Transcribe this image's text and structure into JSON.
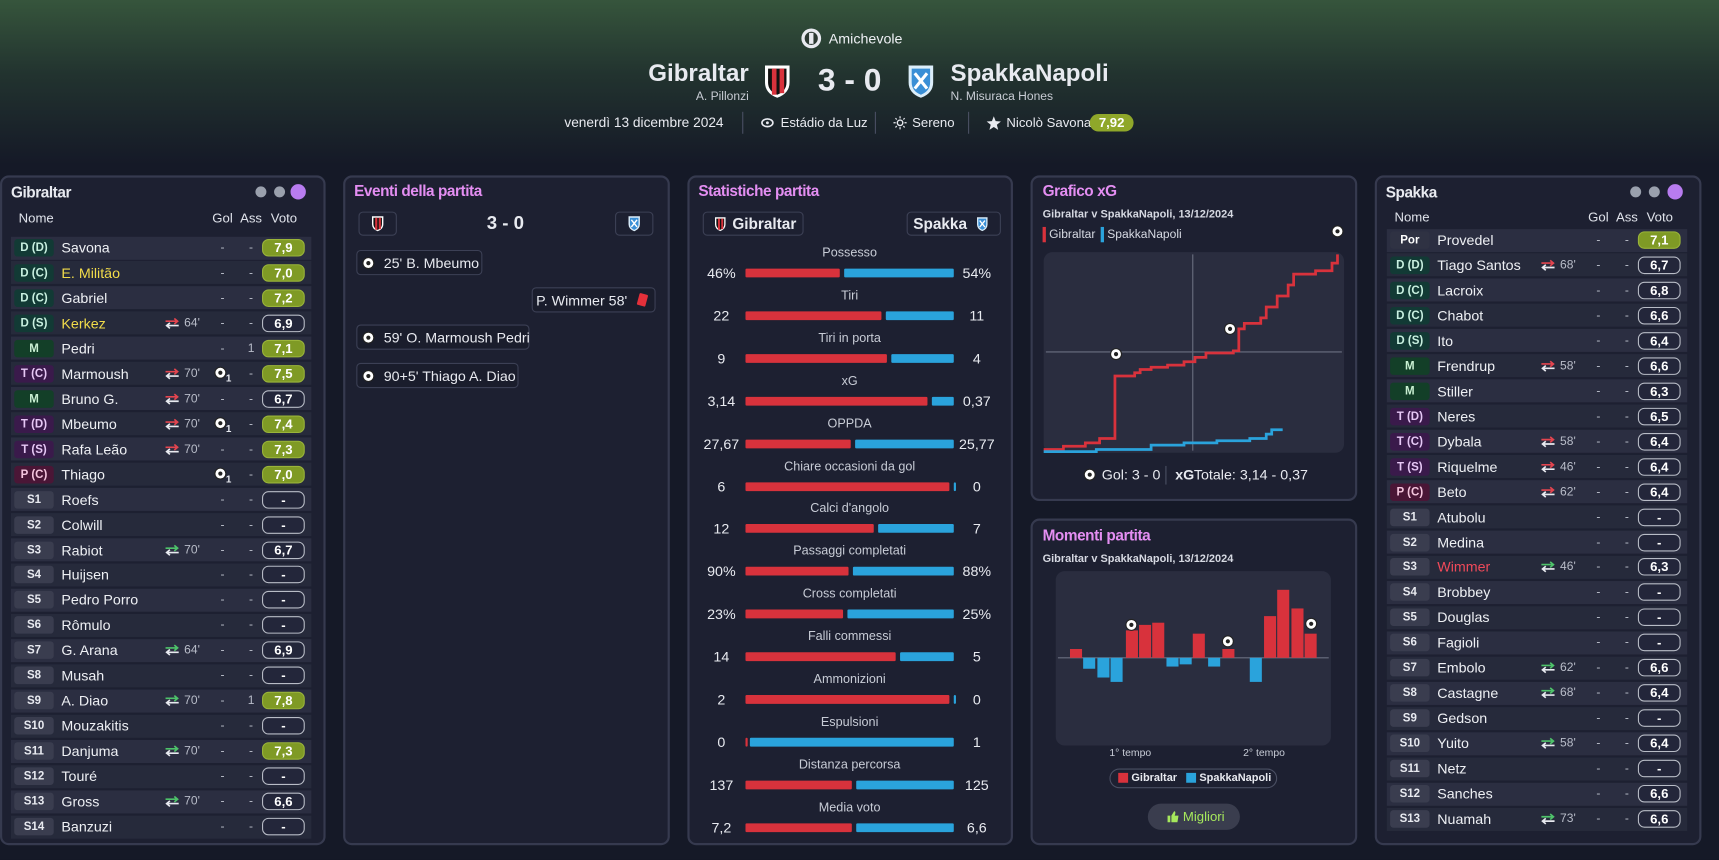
{
  "header": {
    "competition": "Amichevole",
    "home_team": "Gibraltar",
    "home_manager": "A. Pillonzi",
    "score": "3 - 0",
    "away_team": "SpakkaNapoli",
    "away_manager": "N. Misuraca Hones",
    "date": "venerdì 13 dicembre 2024",
    "stadium": "Estádio da Luz",
    "weather": "Sereno",
    "player_of_match": "Nicolò Savona",
    "player_of_match_rating": "7,92"
  },
  "home_lineup": {
    "title": "Gibraltar",
    "columns": [
      "Nome",
      "Gol",
      "Ass",
      "Voto"
    ],
    "players": [
      {
        "pos": "D (D)",
        "name": "Savona",
        "gol": "-",
        "ass": "-",
        "voto": "7,9"
      },
      {
        "pos": "D (C)",
        "name": "E. Militão",
        "highlight": "#f2dc4a",
        "gol": "-",
        "ass": "-",
        "voto": "7,0"
      },
      {
        "pos": "D (C)",
        "name": "Gabriel",
        "gol": "-",
        "ass": "-",
        "voto": "7,2"
      },
      {
        "pos": "D (S)",
        "name": "Kerkez",
        "highlight": "#f2dc4a",
        "sub": "64'",
        "gol": "-",
        "ass": "-",
        "voto": "6,9"
      },
      {
        "pos": "M",
        "name": "Pedri",
        "gol": "-",
        "ass": "1",
        "voto": "7,1"
      },
      {
        "pos": "T (C)",
        "name": "Marmoush",
        "sub": "70'",
        "gol": "1",
        "ass": "-",
        "voto": "7,5"
      },
      {
        "pos": "M",
        "name": "Bruno G.",
        "sub": "70'",
        "gol": "-",
        "ass": "-",
        "voto": "6,7"
      },
      {
        "pos": "T (D)",
        "name": "Mbeumo",
        "sub": "70'",
        "gol": "1",
        "ass": "-",
        "voto": "7,4"
      },
      {
        "pos": "T (S)",
        "name": "Rafa Leão",
        "sub": "70'",
        "gol": "-",
        "ass": "-",
        "voto": "7,3"
      },
      {
        "pos": "P (C)",
        "name": "Thiago",
        "gol": "1",
        "ass": "-",
        "voto": "7,0"
      },
      {
        "pos": "S1",
        "name": "Roefs",
        "gol": "-",
        "ass": "-",
        "voto": "-"
      },
      {
        "pos": "S2",
        "name": "Colwill",
        "gol": "-",
        "ass": "-",
        "voto": "-"
      },
      {
        "pos": "S3",
        "name": "Rabiot",
        "sub": "70'",
        "gol": "-",
        "ass": "-",
        "voto": "6,7"
      },
      {
        "pos": "S4",
        "name": "Huijsen",
        "gol": "-",
        "ass": "-",
        "voto": "-"
      },
      {
        "pos": "S5",
        "name": "Pedro Porro",
        "gol": "-",
        "ass": "-",
        "voto": "-"
      },
      {
        "pos": "S6",
        "name": "Rômulo",
        "gol": "-",
        "ass": "-",
        "voto": "-"
      },
      {
        "pos": "S7",
        "name": "G. Arana",
        "sub": "64'",
        "gol": "-",
        "ass": "-",
        "voto": "6,9"
      },
      {
        "pos": "S8",
        "name": "Musah",
        "gol": "-",
        "ass": "-",
        "voto": "-"
      },
      {
        "pos": "S9",
        "name": "A. Diao",
        "sub": "70'",
        "gol": "-",
        "ass": "1",
        "voto": "7,8"
      },
      {
        "pos": "S10",
        "name": "Mouzakitis",
        "gol": "-",
        "ass": "-",
        "voto": "-"
      },
      {
        "pos": "S11",
        "name": "Danjuma",
        "sub": "70'",
        "gol": "-",
        "ass": "-",
        "voto": "7,3"
      },
      {
        "pos": "S12",
        "name": "Touré",
        "gol": "-",
        "ass": "-",
        "voto": "-"
      },
      {
        "pos": "S13",
        "name": "Gross",
        "sub": "70'",
        "gol": "-",
        "ass": "-",
        "voto": "6,6"
      },
      {
        "pos": "S14",
        "name": "Banzuzi",
        "gol": "-",
        "ass": "-",
        "voto": "-"
      }
    ]
  },
  "events": {
    "title": "Eventi della partita",
    "score": "3 - 0",
    "items": [
      "25' B. Mbeumo",
      "P. Wimmer 58'",
      "59' O. Marmoush Pedri",
      "90+5' Thiago A. Diao"
    ]
  },
  "stats": {
    "title": "Statistiche partita",
    "home_team": "Gibraltar",
    "away_team": "Spakka",
    "rows": [
      {
        "label": "Possesso",
        "home": "46%",
        "away": "54%"
      },
      {
        "label": "Tiri",
        "home": "22",
        "away": "11"
      },
      {
        "label": "Tiri in porta",
        "home": "9",
        "away": "4"
      },
      {
        "label": "xG",
        "home": "3,14",
        "away": "0,37"
      },
      {
        "label": "OPPDA",
        "home": "27,67",
        "away": "25,77"
      },
      {
        "label": "Chiare occasioni da gol",
        "home": "6",
        "away": "0"
      },
      {
        "label": "Calci d'angolo",
        "home": "12",
        "away": "7"
      },
      {
        "label": "Passaggi completati",
        "home": "90%",
        "away": "88%"
      },
      {
        "label": "Cross completati",
        "home": "23%",
        "away": "25%"
      },
      {
        "label": "Falli commessi",
        "home": "14",
        "away": "5"
      },
      {
        "label": "Ammonizioni",
        "home": "2",
        "away": "0"
      },
      {
        "label": "Espulsioni",
        "home": "0",
        "away": "1"
      },
      {
        "label": "Distanza percorsa",
        "home": "137",
        "away": "125"
      },
      {
        "label": "Media voto",
        "home": "7,2",
        "away": "6,6"
      }
    ]
  },
  "xg_chart": {
    "title": "Grafico xG",
    "subtitle": "Gibraltar v SpakkaNapoli, 13/12/2024",
    "legend": [
      "Gibraltar",
      "SpakkaNapoli"
    ],
    "goals": "Gol: 3 - 0",
    "xg_label": "xG",
    "xg_total": "Totale: 3,14 - 0,37"
  },
  "moments": {
    "title": "Momenti partita",
    "subtitle": "Gibraltar v SpakkaNapoli, 13/12/2024",
    "halves": [
      "1° tempo",
      "2° tempo"
    ],
    "legend": [
      "Gibraltar",
      "SpakkaNapoli"
    ],
    "button": "Migliori"
  },
  "away_lineup": {
    "title": "Spakka",
    "columns": [
      "Nome",
      "Gol",
      "Ass",
      "Voto"
    ],
    "players": [
      {
        "pos": "Por",
        "name": "Provedel",
        "gol": "-",
        "ass": "-",
        "voto": "7,1"
      },
      {
        "pos": "D (D)",
        "name": "Tiago Santos",
        "sub": "68'",
        "gol": "-",
        "ass": "-",
        "voto": "6,7"
      },
      {
        "pos": "D (C)",
        "name": "Lacroix",
        "gol": "-",
        "ass": "-",
        "voto": "6,8"
      },
      {
        "pos": "D (C)",
        "name": "Chabot",
        "gol": "-",
        "ass": "-",
        "voto": "6,6"
      },
      {
        "pos": "D (S)",
        "name": "Ito",
        "gol": "-",
        "ass": "-",
        "voto": "6,4"
      },
      {
        "pos": "M",
        "name": "Frendrup",
        "sub": "58'",
        "gol": "-",
        "ass": "-",
        "voto": "6,6"
      },
      {
        "pos": "M",
        "name": "Stiller",
        "gol": "-",
        "ass": "-",
        "voto": "6,3"
      },
      {
        "pos": "T (D)",
        "name": "Neres",
        "gol": "-",
        "ass": "-",
        "voto": "6,5"
      },
      {
        "pos": "T (C)",
        "name": "Dybala",
        "sub": "58'",
        "gol": "-",
        "ass": "-",
        "voto": "6,4"
      },
      {
        "pos": "T (S)",
        "name": "Riquelme",
        "sub": "46'",
        "gol": "-",
        "ass": "-",
        "voto": "6,4"
      },
      {
        "pos": "P (C)",
        "name": "Beto",
        "sub": "62'",
        "gol": "-",
        "ass": "-",
        "voto": "6,4"
      },
      {
        "pos": "S1",
        "name": "Atubolu",
        "gol": "-",
        "ass": "-",
        "voto": "-"
      },
      {
        "pos": "S2",
        "name": "Medina",
        "gol": "-",
        "ass": "-",
        "voto": "-"
      },
      {
        "pos": "S3",
        "name": "Wimmer",
        "highlight": "#f04a5a",
        "sub": "46'",
        "gol": "-",
        "ass": "-",
        "voto": "6,3"
      },
      {
        "pos": "S4",
        "name": "Brobbey",
        "gol": "-",
        "ass": "-",
        "voto": "-"
      },
      {
        "pos": "S5",
        "name": "Douglas",
        "gol": "-",
        "ass": "-",
        "voto": "-"
      },
      {
        "pos": "S6",
        "name": "Fagioli",
        "gol": "-",
        "ass": "-",
        "voto": "-"
      },
      {
        "pos": "S7",
        "name": "Embolo",
        "sub": "62'",
        "gol": "-",
        "ass": "-",
        "voto": "6,6"
      },
      {
        "pos": "S8",
        "name": "Castagne",
        "sub": "68'",
        "gol": "-",
        "ass": "-",
        "voto": "6,4"
      },
      {
        "pos": "S9",
        "name": "Gedson",
        "gol": "-",
        "ass": "-",
        "voto": "-"
      },
      {
        "pos": "S10",
        "name": "Yuito",
        "sub": "58'",
        "gol": "-",
        "ass": "-",
        "voto": "6,4"
      },
      {
        "pos": "S11",
        "name": "Netz",
        "gol": "-",
        "ass": "-",
        "voto": "-"
      },
      {
        "pos": "S12",
        "name": "Sanches",
        "gol": "-",
        "ass": "-",
        "voto": "6,6"
      },
      {
        "pos": "S13",
        "name": "Nuamah",
        "sub": "73'",
        "gol": "-",
        "ass": "-",
        "voto": "6,6"
      }
    ]
  }
}
